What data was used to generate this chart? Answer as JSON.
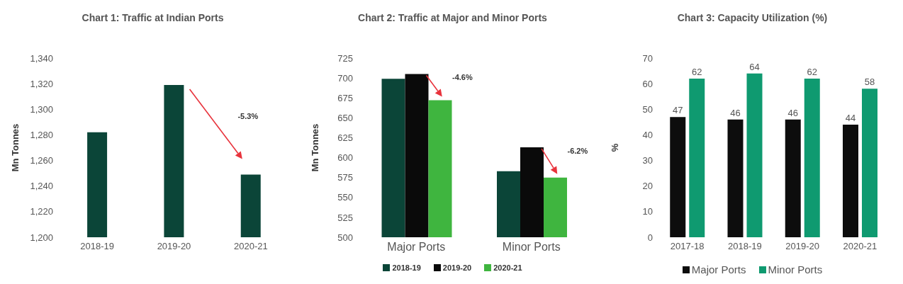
{
  "chart_data": [
    {
      "type": "bar",
      "title": "Chart 1: Traffic at Indian Ports",
      "ylabel": "Mn Tonnes",
      "categories": [
        "2018-19",
        "2019-20",
        "2020-21"
      ],
      "values": [
        1282,
        1319,
        1249
      ],
      "color": "#0b4538",
      "ylim": [
        1200,
        1340
      ],
      "yticks": [
        {
          "value": 1200,
          "label": "1,200"
        },
        {
          "value": 1220,
          "label": "1,220"
        },
        {
          "value": 1240,
          "label": "1,240"
        },
        {
          "value": 1260,
          "label": "1,260"
        },
        {
          "value": 1280,
          "label": "1,280"
        },
        {
          "value": 1300,
          "label": "1,300"
        },
        {
          "value": 1320,
          "label": "1,320"
        },
        {
          "value": 1340,
          "label": "1,340"
        }
      ],
      "grid": false,
      "annotations": [
        "-5.3%"
      ]
    },
    {
      "type": "bar",
      "title": "Chart 2: Traffic at Major and Minor Ports",
      "ylabel": "Mn Tonnes",
      "categories": [
        "Major Ports",
        "Minor Ports"
      ],
      "series": [
        {
          "name": "2018-19",
          "color": "#0b4538",
          "values": [
            699,
            583
          ]
        },
        {
          "name": "2019-20",
          "color": "#0a0a0a",
          "values": [
            705,
            613
          ]
        },
        {
          "name": "2020-21",
          "color": "#3fb53f",
          "values": [
            672,
            575
          ]
        }
      ],
      "ylim": [
        500,
        725
      ],
      "yticks": [
        500,
        525,
        550,
        575,
        600,
        625,
        650,
        675,
        700,
        725
      ],
      "grid": false,
      "legend": "bottom",
      "annotations": [
        "-4.6%",
        "-6.2%"
      ]
    },
    {
      "type": "bar",
      "title": "Chart 3: Capacity Utilization (%)",
      "ylabel": "%",
      "categories": [
        "2017-18",
        "2018-19",
        "2019-20",
        "2020-21"
      ],
      "series": [
        {
          "name": "Major Ports",
          "color": "#0d0d0d",
          "values": [
            47,
            46,
            46,
            44
          ]
        },
        {
          "name": "Minor Ports",
          "color": "#0f9a70",
          "values": [
            62,
            64,
            62,
            58
          ]
        }
      ],
      "ylim": [
        0,
        70
      ],
      "yticks": [
        0,
        10,
        20,
        30,
        40,
        50,
        60,
        70
      ],
      "grid": false,
      "legend": "bottom",
      "data_labels": true
    }
  ]
}
